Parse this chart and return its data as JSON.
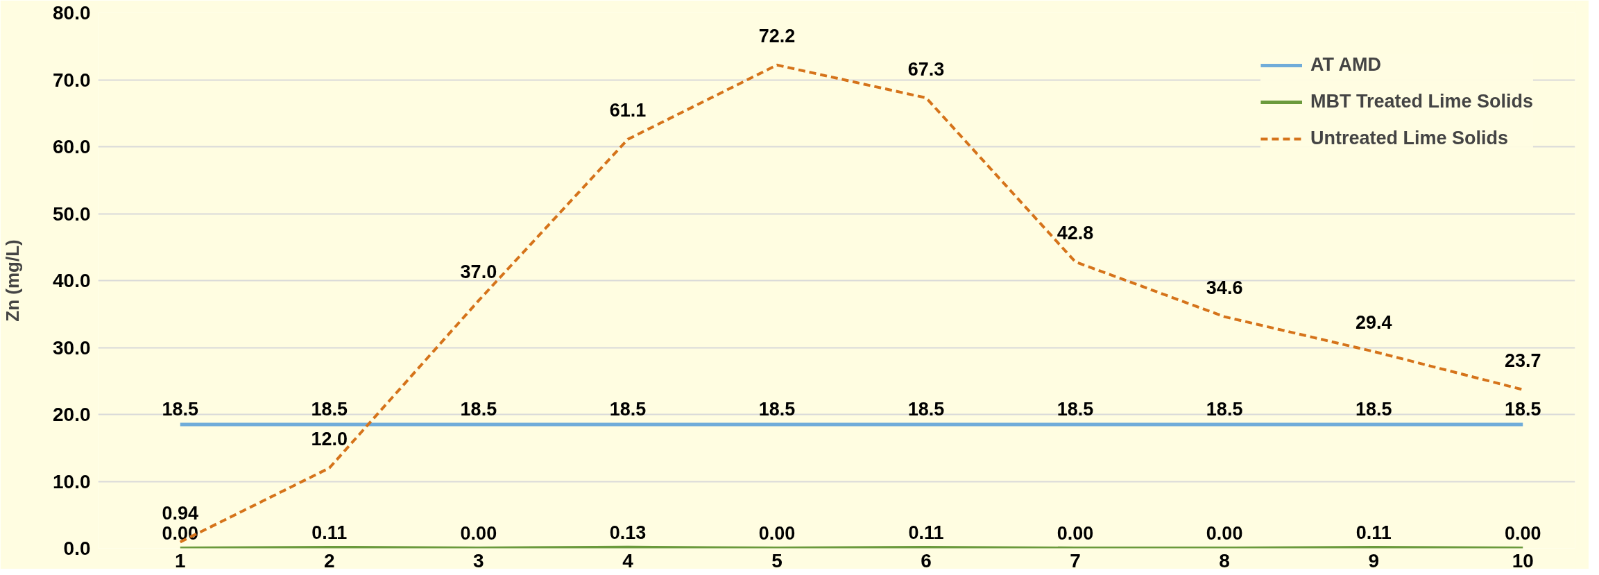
{
  "chart_data": {
    "type": "line",
    "ylabel": "Zn (mg/L)",
    "categories": [
      "1",
      "2",
      "3",
      "4",
      "5",
      "6",
      "7",
      "8",
      "9",
      "10"
    ],
    "ylim": [
      0,
      80
    ],
    "yticks": [
      {
        "value": 0,
        "label": "0.0"
      },
      {
        "value": 10,
        "label": "10.0"
      },
      {
        "value": 20,
        "label": "20.0"
      },
      {
        "value": 30,
        "label": "30.0"
      },
      {
        "value": 40,
        "label": "40.0"
      },
      {
        "value": 50,
        "label": "50.0"
      },
      {
        "value": 60,
        "label": "60.0"
      },
      {
        "value": 70,
        "label": "70.0"
      },
      {
        "value": 80,
        "label": "80.0"
      }
    ],
    "grid": "y",
    "legend": "right",
    "marker": "none",
    "series": [
      {
        "name": "AT AMD",
        "color": "#70acd9",
        "line_style": "solid",
        "values": [
          18.5,
          18.5,
          18.5,
          18.5,
          18.5,
          18.5,
          18.5,
          18.5,
          18.5,
          18.5
        ],
        "value_labels": [
          "18.5",
          "18.5",
          "18.5",
          "18.5",
          "18.5",
          "18.5",
          "18.5",
          "18.5",
          "18.5",
          "18.5"
        ]
      },
      {
        "name": "MBT Treated Lime Solids",
        "color": "#6b9a3c",
        "line_style": "solid",
        "values": [
          0,
          0.11,
          0,
          0.13,
          0,
          0.11,
          0,
          0,
          0.11,
          0
        ],
        "value_labels": [
          "0.00",
          "0.11",
          "0.00",
          "0.13",
          "0.00",
          "0.11",
          "0.00",
          "0.00",
          "0.11",
          "0.00"
        ]
      },
      {
        "name": "Untreated Lime Solids",
        "color": "#d5731a",
        "line_style": "dashed",
        "values": [
          0.94,
          12.0,
          37.0,
          61.1,
          72.2,
          67.3,
          42.8,
          34.6,
          29.4,
          23.7
        ],
        "value_labels": [
          "0.94",
          "12.0",
          "37.0",
          "61.1",
          "72.2",
          "67.3",
          "42.8",
          "34.6",
          "29.4",
          "23.7"
        ]
      }
    ]
  }
}
